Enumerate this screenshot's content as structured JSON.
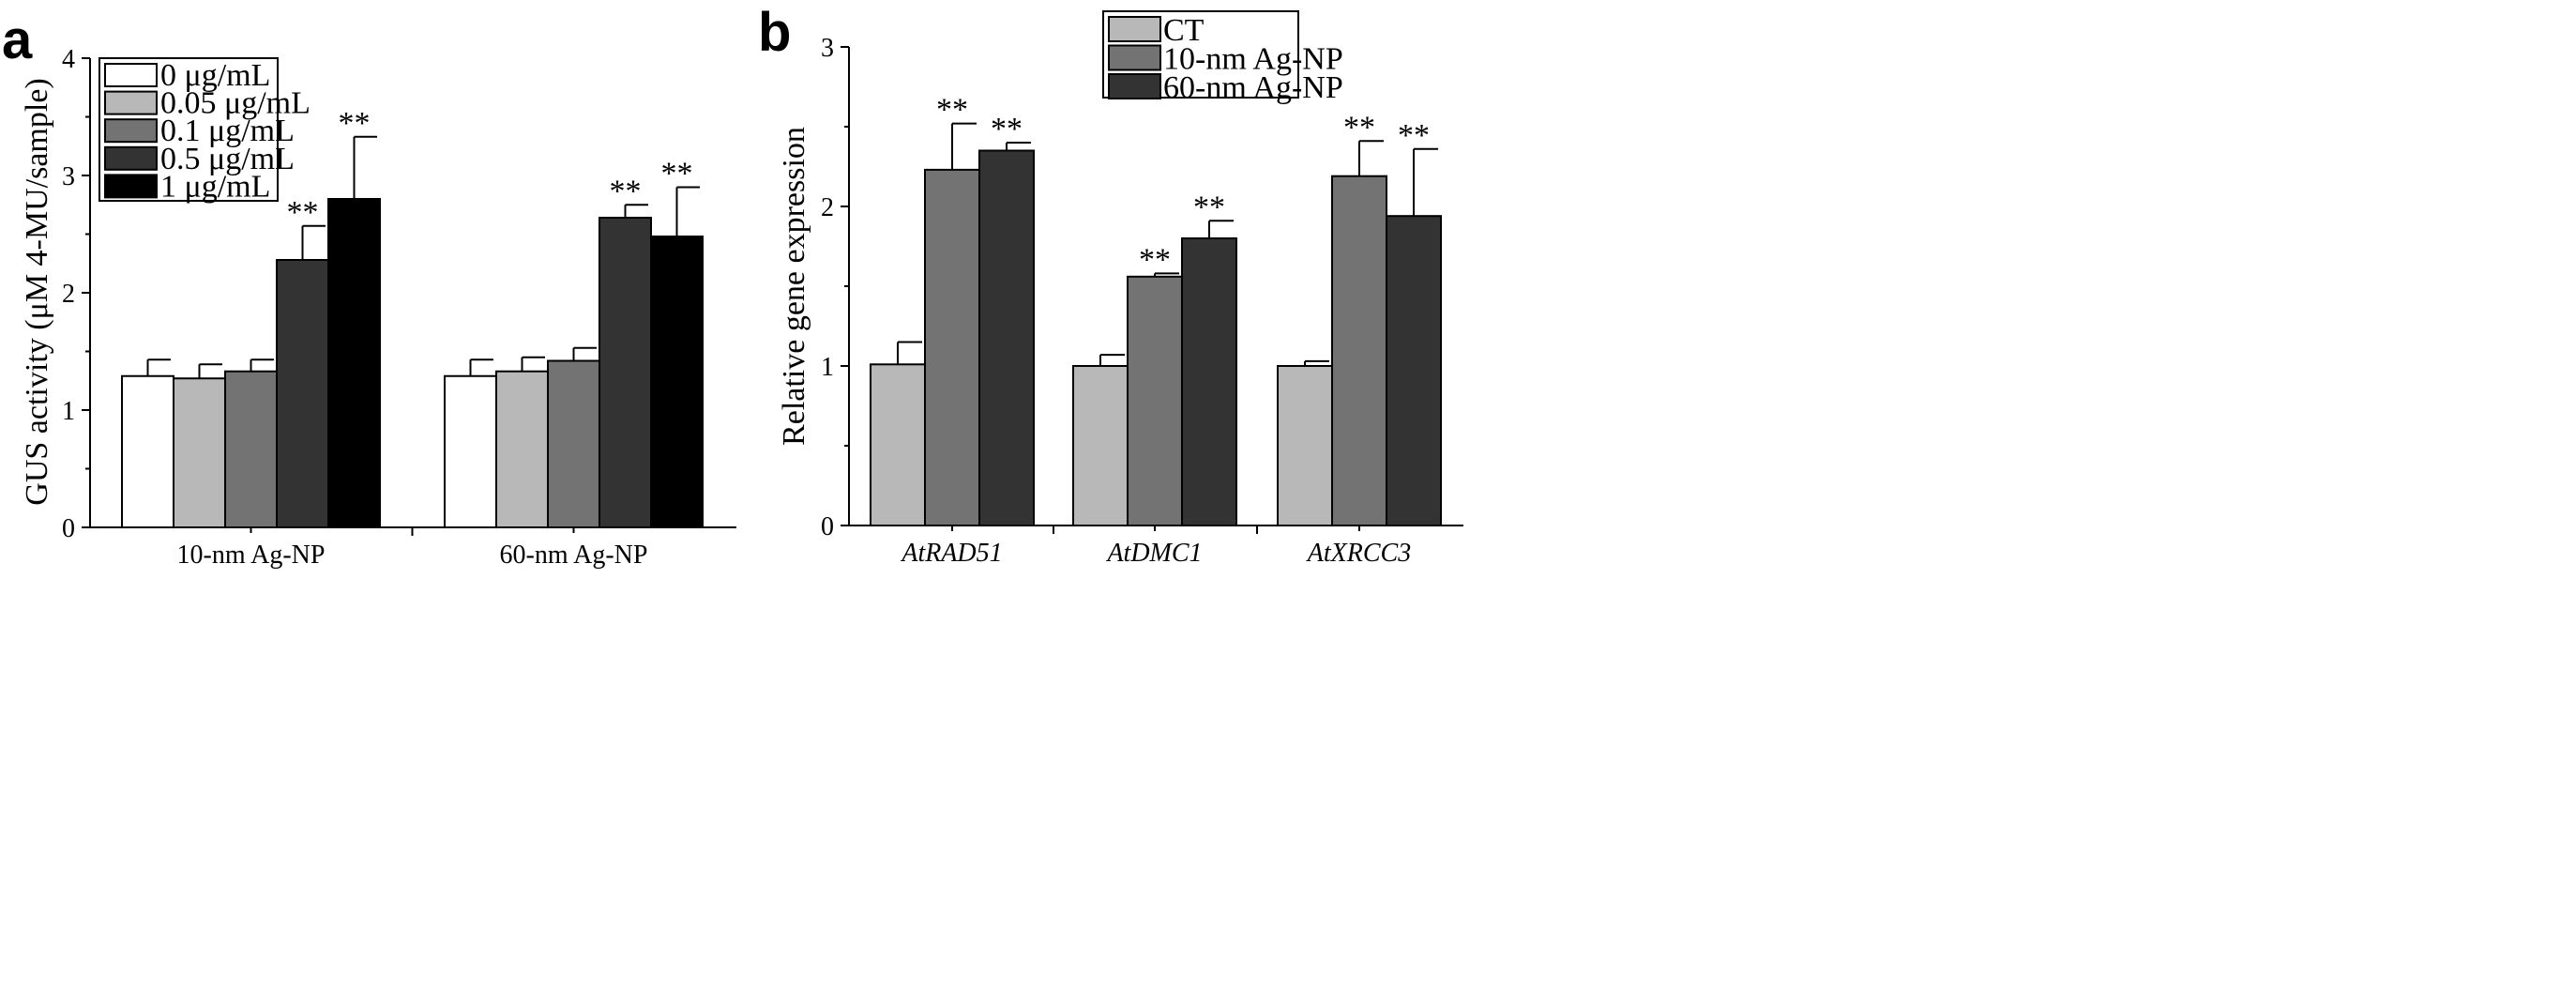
{
  "chart_data": [
    {
      "panel_label": "a",
      "type": "bar",
      "title": "",
      "xlabel": "",
      "ylabel": "GUS activity (μM 4-MU/sample)",
      "ylim": [
        0,
        4
      ],
      "yticks": [
        "0",
        "1",
        "2",
        "3",
        "4"
      ],
      "categories": [
        "10-nm Ag-NP",
        "60-nm Ag-NP"
      ],
      "category_italic": false,
      "legend_position": "top-left",
      "series": [
        {
          "name": "0 μg/mL",
          "color": "#ffffff",
          "values": [
            1.29,
            1.29
          ],
          "errors": [
            0.14,
            0.14
          ],
          "sig": [
            "",
            ""
          ]
        },
        {
          "name": "0.05 μg/mL",
          "color": "#b8b8b8",
          "values": [
            1.27,
            1.33
          ],
          "errors": [
            0.12,
            0.12
          ],
          "sig": [
            "",
            ""
          ]
        },
        {
          "name": "0.1 μg/mL",
          "color": "#737373",
          "values": [
            1.33,
            1.42
          ],
          "errors": [
            0.1,
            0.11
          ],
          "sig": [
            "",
            ""
          ]
        },
        {
          "name": "0.5 μg/mL",
          "color": "#333333",
          "values": [
            2.28,
            2.64
          ],
          "errors": [
            0.29,
            0.11
          ],
          "sig": [
            "**",
            "**"
          ]
        },
        {
          "name": "1 μg/mL",
          "color": "#000000",
          "values": [
            2.8,
            2.48
          ],
          "errors": [
            0.53,
            0.42
          ],
          "sig": [
            "**",
            "**"
          ]
        }
      ]
    },
    {
      "panel_label": "b",
      "type": "bar",
      "title": "",
      "xlabel": "",
      "ylabel": "Relative gene expression",
      "ylim": [
        0,
        3
      ],
      "yticks": [
        "0",
        "1",
        "2",
        "3"
      ],
      "categories": [
        "AtRAD51",
        "AtDMC1",
        "AtXRCC3"
      ],
      "category_italic": true,
      "legend_position": "top-right",
      "series": [
        {
          "name": "CT",
          "color": "#b8b8b8",
          "values": [
            1.01,
            1.0,
            1.0
          ],
          "errors": [
            0.14,
            0.07,
            0.03
          ],
          "sig": [
            "",
            "",
            ""
          ]
        },
        {
          "name": "10-nm Ag-NP",
          "color": "#737373",
          "values": [
            2.23,
            1.56,
            2.19
          ],
          "errors": [
            0.29,
            0.02,
            0.22
          ],
          "sig": [
            "**",
            "**",
            "**"
          ]
        },
        {
          "name": "60-nm Ag-NP",
          "color": "#333333",
          "values": [
            2.35,
            1.8,
            1.94
          ],
          "errors": [
            0.05,
            0.11,
            0.42
          ],
          "sig": [
            "**",
            "**",
            "**"
          ]
        }
      ]
    }
  ]
}
